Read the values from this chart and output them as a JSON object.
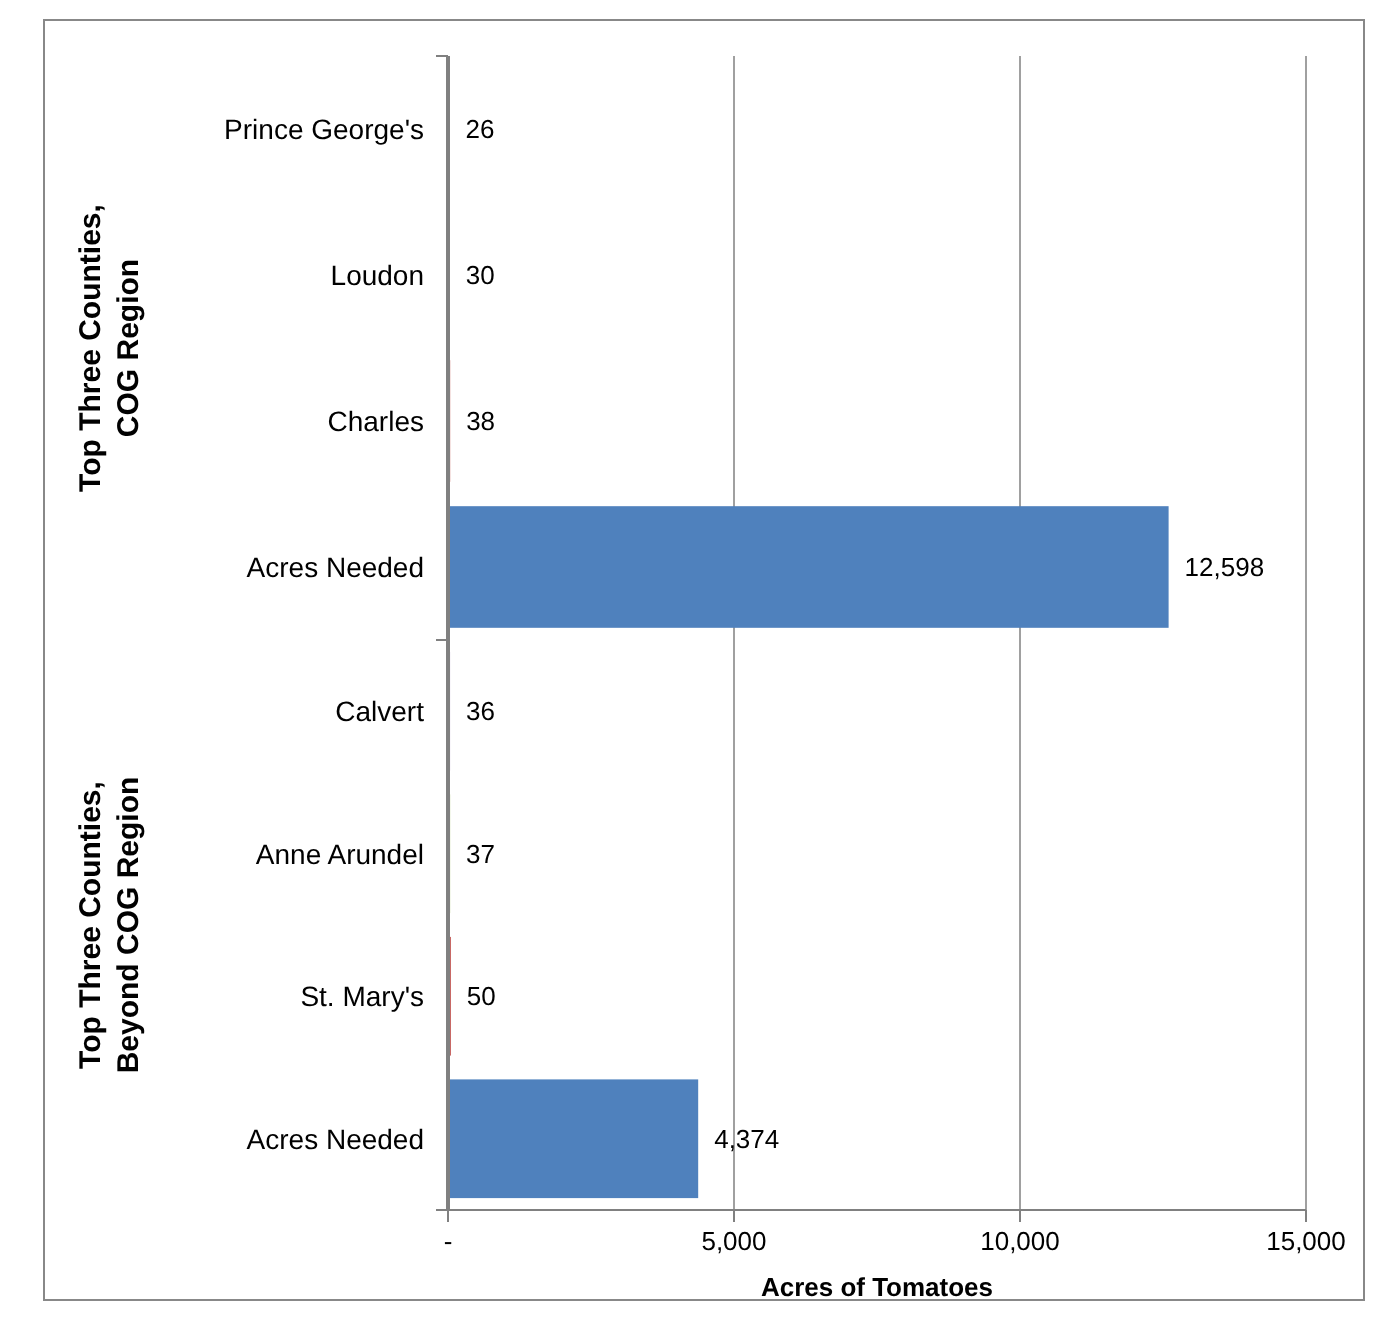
{
  "chart_data": [
    {
      "type": "bar",
      "orientation": "horizontal",
      "ylabel": "Top Three Counties, COG Region",
      "categories": [
        "Prince George's",
        "Loudon",
        "Charles",
        "Acres Needed"
      ],
      "values": [
        26,
        30,
        38,
        12598
      ],
      "colors": [
        "#8064a2",
        "#9bbb59",
        "#c0504d",
        "#4f81bd"
      ],
      "value_labels": [
        "26",
        "30",
        "38",
        "12,598"
      ],
      "xlim": [
        0,
        15000
      ],
      "xticks": [
        {
          "value": 0,
          "label": null
        },
        {
          "value": 5000,
          "label": null
        },
        {
          "value": 10000,
          "label": null
        },
        {
          "value": 15000,
          "label": null
        }
      ],
      "grid": "x",
      "tick_labels": "y"
    },
    {
      "type": "bar",
      "orientation": "horizontal",
      "ylabel": "Top Three Counties, Beyond COG Region",
      "xlabel": "Acres of Tomatoes",
      "categories": [
        "Calvert",
        "Anne Arundel",
        "St. Mary's",
        "Acres Needed"
      ],
      "values": [
        36,
        37,
        50,
        4374
      ],
      "colors": [
        "#8064a2",
        "#9bbb59",
        "#c0504d",
        "#4f81bd"
      ],
      "value_labels": [
        "36",
        "37",
        "50",
        "4,374"
      ],
      "xlim": [
        0,
        15000
      ],
      "xticks": [
        {
          "value": 0,
          "label": "-"
        },
        {
          "value": 5000,
          "label": "5,000"
        },
        {
          "value": 10000,
          "label": "10,000"
        },
        {
          "value": 15000,
          "label": "15,000"
        }
      ],
      "grid": "x"
    }
  ]
}
